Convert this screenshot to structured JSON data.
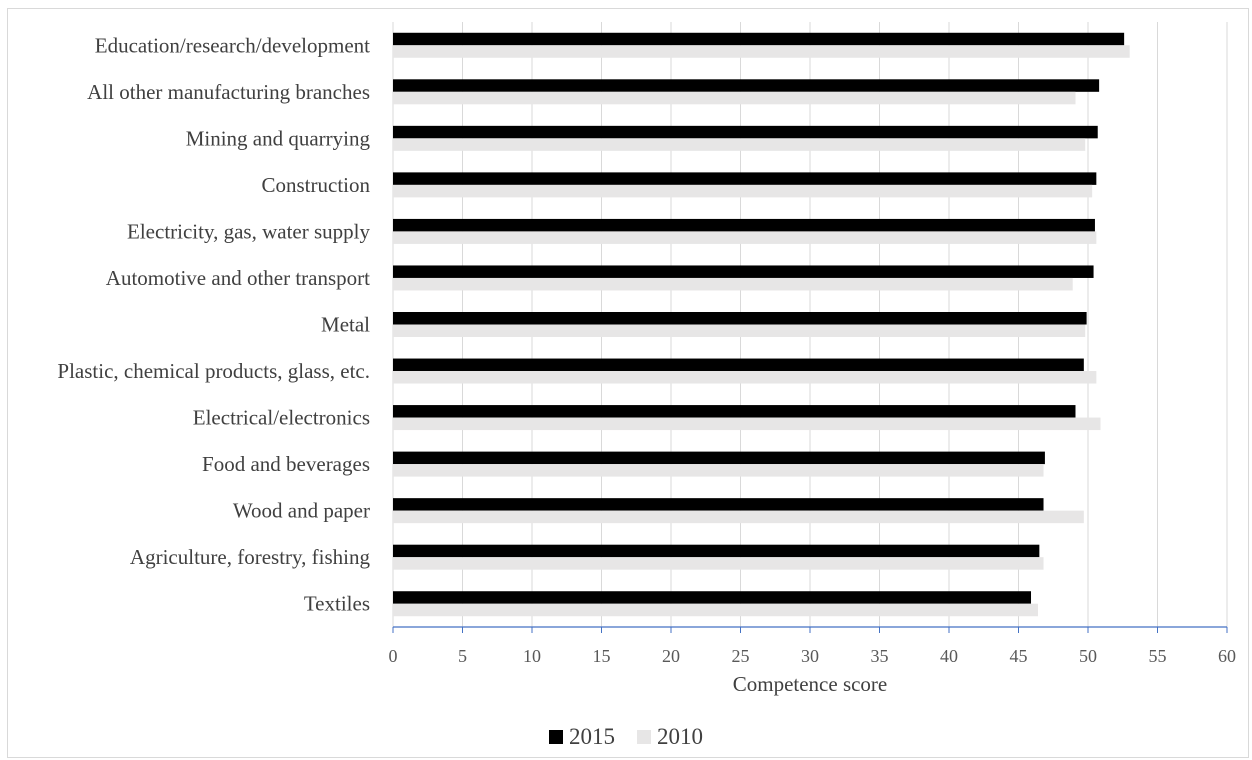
{
  "chart_data": {
    "type": "bar",
    "orientation": "horizontal",
    "categories": [
      "Education/research/development",
      "All other manufacturing branches",
      "Mining and quarrying",
      "Construction",
      "Electricity, gas, water supply",
      "Automotive and other transport",
      "Metal",
      "Plastic, chemical products, glass, etc.",
      "Electrical/electronics",
      "Food and beverages",
      "Wood and paper",
      "Agriculture, forestry, fishing",
      "Textiles"
    ],
    "series": [
      {
        "name": "2015",
        "color": "#000000",
        "values": [
          52.6,
          50.8,
          50.7,
          50.6,
          50.5,
          50.4,
          49.9,
          49.7,
          49.1,
          46.9,
          46.8,
          46.5,
          45.9
        ]
      },
      {
        "name": "2010",
        "color": "#e7e6e6",
        "values": [
          53.0,
          49.1,
          49.8,
          50.3,
          50.6,
          48.9,
          49.8,
          50.6,
          50.9,
          46.8,
          49.7,
          46.8,
          46.4
        ]
      }
    ],
    "title": "",
    "xlabel": "Competence score",
    "ylabel": "",
    "xlim": [
      0,
      60
    ],
    "xticks": [
      "0",
      "5",
      "10",
      "15",
      "20",
      "25",
      "30",
      "35",
      "40",
      "45",
      "50",
      "55",
      "60"
    ],
    "grid": "vertical",
    "legend_position": "bottom"
  }
}
